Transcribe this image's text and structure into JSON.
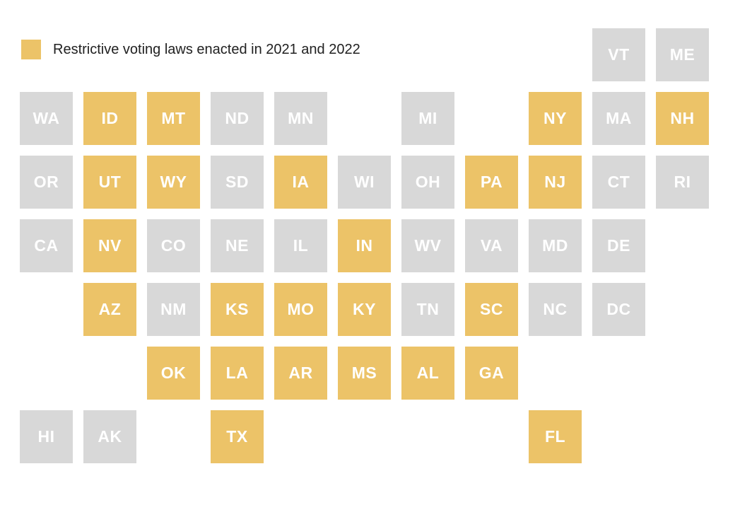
{
  "legend": {
    "label": "Restrictive voting laws enacted in 2021 and 2022"
  },
  "colors": {
    "highlighted": "#ecc368",
    "default": "#d8d8d8",
    "tile_label": "#ffffff",
    "legend_text": "#212121",
    "background": "#ffffff"
  },
  "grid": {
    "columns": 11,
    "rows": 7,
    "tile_size": 75,
    "gap": 15
  },
  "chart_data": {
    "type": "tile-grid-map",
    "title": "Restrictive voting laws enacted in 2021 and 2022",
    "legend": [
      {
        "label": "Restrictive voting laws enacted in 2021 and 2022",
        "color": "#ecc368"
      }
    ],
    "highlighted_states": [
      "ID",
      "MT",
      "NY",
      "NH",
      "UT",
      "WY",
      "IA",
      "PA",
      "NJ",
      "NV",
      "IN",
      "AZ",
      "KS",
      "MO",
      "KY",
      "SC",
      "OK",
      "LA",
      "AR",
      "MS",
      "AL",
      "GA",
      "TX",
      "FL"
    ],
    "states": [
      {
        "abbr": "VT",
        "row": 0,
        "col": 9,
        "highlighted": false
      },
      {
        "abbr": "ME",
        "row": 0,
        "col": 10,
        "highlighted": false
      },
      {
        "abbr": "WA",
        "row": 1,
        "col": 0,
        "highlighted": false
      },
      {
        "abbr": "ID",
        "row": 1,
        "col": 1,
        "highlighted": true
      },
      {
        "abbr": "MT",
        "row": 1,
        "col": 2,
        "highlighted": true
      },
      {
        "abbr": "ND",
        "row": 1,
        "col": 3,
        "highlighted": false
      },
      {
        "abbr": "MN",
        "row": 1,
        "col": 4,
        "highlighted": false
      },
      {
        "abbr": "MI",
        "row": 1,
        "col": 6,
        "highlighted": false
      },
      {
        "abbr": "NY",
        "row": 1,
        "col": 8,
        "highlighted": true
      },
      {
        "abbr": "MA",
        "row": 1,
        "col": 9,
        "highlighted": false
      },
      {
        "abbr": "NH",
        "row": 1,
        "col": 10,
        "highlighted": true
      },
      {
        "abbr": "OR",
        "row": 2,
        "col": 0,
        "highlighted": false
      },
      {
        "abbr": "UT",
        "row": 2,
        "col": 1,
        "highlighted": true
      },
      {
        "abbr": "WY",
        "row": 2,
        "col": 2,
        "highlighted": true
      },
      {
        "abbr": "SD",
        "row": 2,
        "col": 3,
        "highlighted": false
      },
      {
        "abbr": "IA",
        "row": 2,
        "col": 4,
        "highlighted": true
      },
      {
        "abbr": "WI",
        "row": 2,
        "col": 5,
        "highlighted": false
      },
      {
        "abbr": "OH",
        "row": 2,
        "col": 6,
        "highlighted": false
      },
      {
        "abbr": "PA",
        "row": 2,
        "col": 7,
        "highlighted": true
      },
      {
        "abbr": "NJ",
        "row": 2,
        "col": 8,
        "highlighted": true
      },
      {
        "abbr": "CT",
        "row": 2,
        "col": 9,
        "highlighted": false
      },
      {
        "abbr": "RI",
        "row": 2,
        "col": 10,
        "highlighted": false
      },
      {
        "abbr": "CA",
        "row": 3,
        "col": 0,
        "highlighted": false
      },
      {
        "abbr": "NV",
        "row": 3,
        "col": 1,
        "highlighted": true
      },
      {
        "abbr": "CO",
        "row": 3,
        "col": 2,
        "highlighted": false
      },
      {
        "abbr": "NE",
        "row": 3,
        "col": 3,
        "highlighted": false
      },
      {
        "abbr": "IL",
        "row": 3,
        "col": 4,
        "highlighted": false
      },
      {
        "abbr": "IN",
        "row": 3,
        "col": 5,
        "highlighted": true
      },
      {
        "abbr": "WV",
        "row": 3,
        "col": 6,
        "highlighted": false
      },
      {
        "abbr": "VA",
        "row": 3,
        "col": 7,
        "highlighted": false
      },
      {
        "abbr": "MD",
        "row": 3,
        "col": 8,
        "highlighted": false
      },
      {
        "abbr": "DE",
        "row": 3,
        "col": 9,
        "highlighted": false
      },
      {
        "abbr": "AZ",
        "row": 4,
        "col": 1,
        "highlighted": true
      },
      {
        "abbr": "NM",
        "row": 4,
        "col": 2,
        "highlighted": false
      },
      {
        "abbr": "KS",
        "row": 4,
        "col": 3,
        "highlighted": true
      },
      {
        "abbr": "MO",
        "row": 4,
        "col": 4,
        "highlighted": true
      },
      {
        "abbr": "KY",
        "row": 4,
        "col": 5,
        "highlighted": true
      },
      {
        "abbr": "TN",
        "row": 4,
        "col": 6,
        "highlighted": false
      },
      {
        "abbr": "SC",
        "row": 4,
        "col": 7,
        "highlighted": true
      },
      {
        "abbr": "NC",
        "row": 4,
        "col": 8,
        "highlighted": false
      },
      {
        "abbr": "DC",
        "row": 4,
        "col": 9,
        "highlighted": false
      },
      {
        "abbr": "OK",
        "row": 5,
        "col": 2,
        "highlighted": true
      },
      {
        "abbr": "LA",
        "row": 5,
        "col": 3,
        "highlighted": true
      },
      {
        "abbr": "AR",
        "row": 5,
        "col": 4,
        "highlighted": true
      },
      {
        "abbr": "MS",
        "row": 5,
        "col": 5,
        "highlighted": true
      },
      {
        "abbr": "AL",
        "row": 5,
        "col": 6,
        "highlighted": true
      },
      {
        "abbr": "GA",
        "row": 5,
        "col": 7,
        "highlighted": true
      },
      {
        "abbr": "HI",
        "row": 6,
        "col": 0,
        "highlighted": false
      },
      {
        "abbr": "AK",
        "row": 6,
        "col": 1,
        "highlighted": false
      },
      {
        "abbr": "TX",
        "row": 6,
        "col": 3,
        "highlighted": true
      },
      {
        "abbr": "FL",
        "row": 6,
        "col": 8,
        "highlighted": true
      }
    ]
  }
}
